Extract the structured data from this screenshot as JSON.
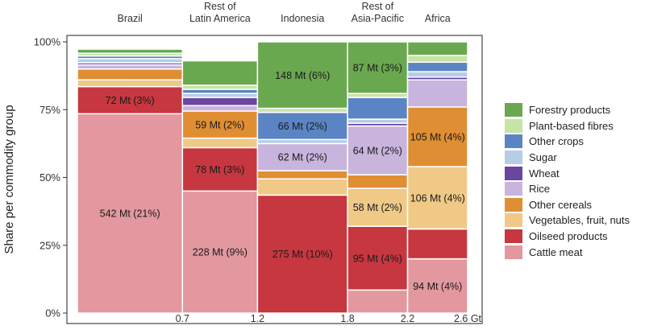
{
  "chart_data": {
    "type": "bar",
    "subtype": "mosaic",
    "ylabel": "Share per commodity group",
    "ylim": [
      0,
      100
    ],
    "y_ticks": [
      "0%",
      "25%",
      "50%",
      "75%",
      "100%"
    ],
    "x_ticks": [
      "0.7",
      "1.2",
      "1.8",
      "2.2",
      "2.6 Gt"
    ],
    "grid": false,
    "legend_position": "right",
    "colors": {
      "Forestry products": "#6aa84f",
      "Plant-based fibres": "#c7e3a5",
      "Other crops": "#5b84c4",
      "Sugar": "#b5cde6",
      "Wheat": "#6a46a0",
      "Rice": "#c8b4dc",
      "Other cereals": "#e08e34",
      "Vegetables, fruit, nuts": "#f0c987",
      "Oilseed products": "#c7373f",
      "Cattle meat": "#e2989e"
    },
    "series_order": [
      "Cattle meat",
      "Oilseed products",
      "Vegetables, fruit, nuts",
      "Other cereals",
      "Rice",
      "Wheat",
      "Sugar",
      "Other crops",
      "Plant-based fibres",
      "Forestry products"
    ],
    "legend": [
      "Forestry products",
      "Plant-based fibres",
      "Other crops",
      "Sugar",
      "Wheat",
      "Rice",
      "Other cereals",
      "Vegetables, fruit, nuts",
      "Oilseed products",
      "Cattle meat"
    ],
    "categories": [
      {
        "name": "Brazil",
        "x_end": 0.7,
        "shares": {
          "Cattle meat": 73.5,
          "Oilseed products": 10,
          "Vegetables, fruit, nuts": 2.5,
          "Other cereals": 4,
          "Rice": 1.5,
          "Wheat": 0.8,
          "Sugar": 1.5,
          "Other crops": 1,
          "Plant-based fibres": 1,
          "Forestry products": 1.5
        },
        "labels": {
          "Cattle meat": "542 Mt (21%)",
          "Oilseed products": "72 Mt (3%)"
        }
      },
      {
        "name": "Rest of\nLatin America",
        "x_end": 1.2,
        "shares": {
          "Cattle meat": 45,
          "Oilseed products": 16,
          "Vegetables, fruit, nuts": 3.5,
          "Other cereals": 10,
          "Rice": 2,
          "Wheat": 3,
          "Sugar": 1.5,
          "Other crops": 1.5,
          "Plant-based fibres": 1.5,
          "Forestry products": 9
        },
        "labels": {
          "Cattle meat": "228 Mt (9%)",
          "Oilseed products": "78 Mt (3%)",
          "Other cereals": "59 Mt (2%)"
        }
      },
      {
        "name": "Indonesia",
        "x_end": 1.8,
        "shares": {
          "Cattle meat": 0,
          "Oilseed products": 43.5,
          "Vegetables, fruit, nuts": 6,
          "Other cereals": 3,
          "Rice": 10,
          "Wheat": 0,
          "Sugar": 1.5,
          "Other crops": 10,
          "Plant-based fibres": 1.5,
          "Forestry products": 24.5
        },
        "labels": {
          "Oilseed products": "275 Mt (10%)",
          "Rice": "62 Mt (2%)",
          "Other crops": "66 Mt (2%)",
          "Forestry products": "148 Mt (6%)"
        }
      },
      {
        "name": "Rest of\nAsia-Pacific",
        "x_end": 2.2,
        "shares": {
          "Cattle meat": 8.5,
          "Oilseed products": 23.5,
          "Vegetables, fruit, nuts": 14,
          "Other cereals": 5,
          "Rice": 18,
          "Wheat": 1,
          "Sugar": 1.5,
          "Other crops": 8,
          "Plant-based fibres": 1.5,
          "Forestry products": 19
        },
        "labels": {
          "Oilseed products": "95 Mt (4%)",
          "Vegetables, fruit, nuts": "58 Mt (2%)",
          "Rice": "64 Mt (2%)",
          "Forestry products": "87 Mt (3%)"
        }
      },
      {
        "name": "Africa",
        "x_end": 2.6,
        "shares": {
          "Cattle meat": 20,
          "Oilseed products": 11,
          "Vegetables, fruit, nuts": 23,
          "Other cereals": 22,
          "Rice": 10,
          "Wheat": 1,
          "Sugar": 2,
          "Other crops": 3.5,
          "Plant-based fibres": 2.5,
          "Forestry products": 5
        },
        "labels": {
          "Cattle meat": "94 Mt (4%)",
          "Vegetables, fruit, nuts": "106 Mt (4%)",
          "Other cereals": "105 Mt (4%)"
        }
      }
    ]
  }
}
